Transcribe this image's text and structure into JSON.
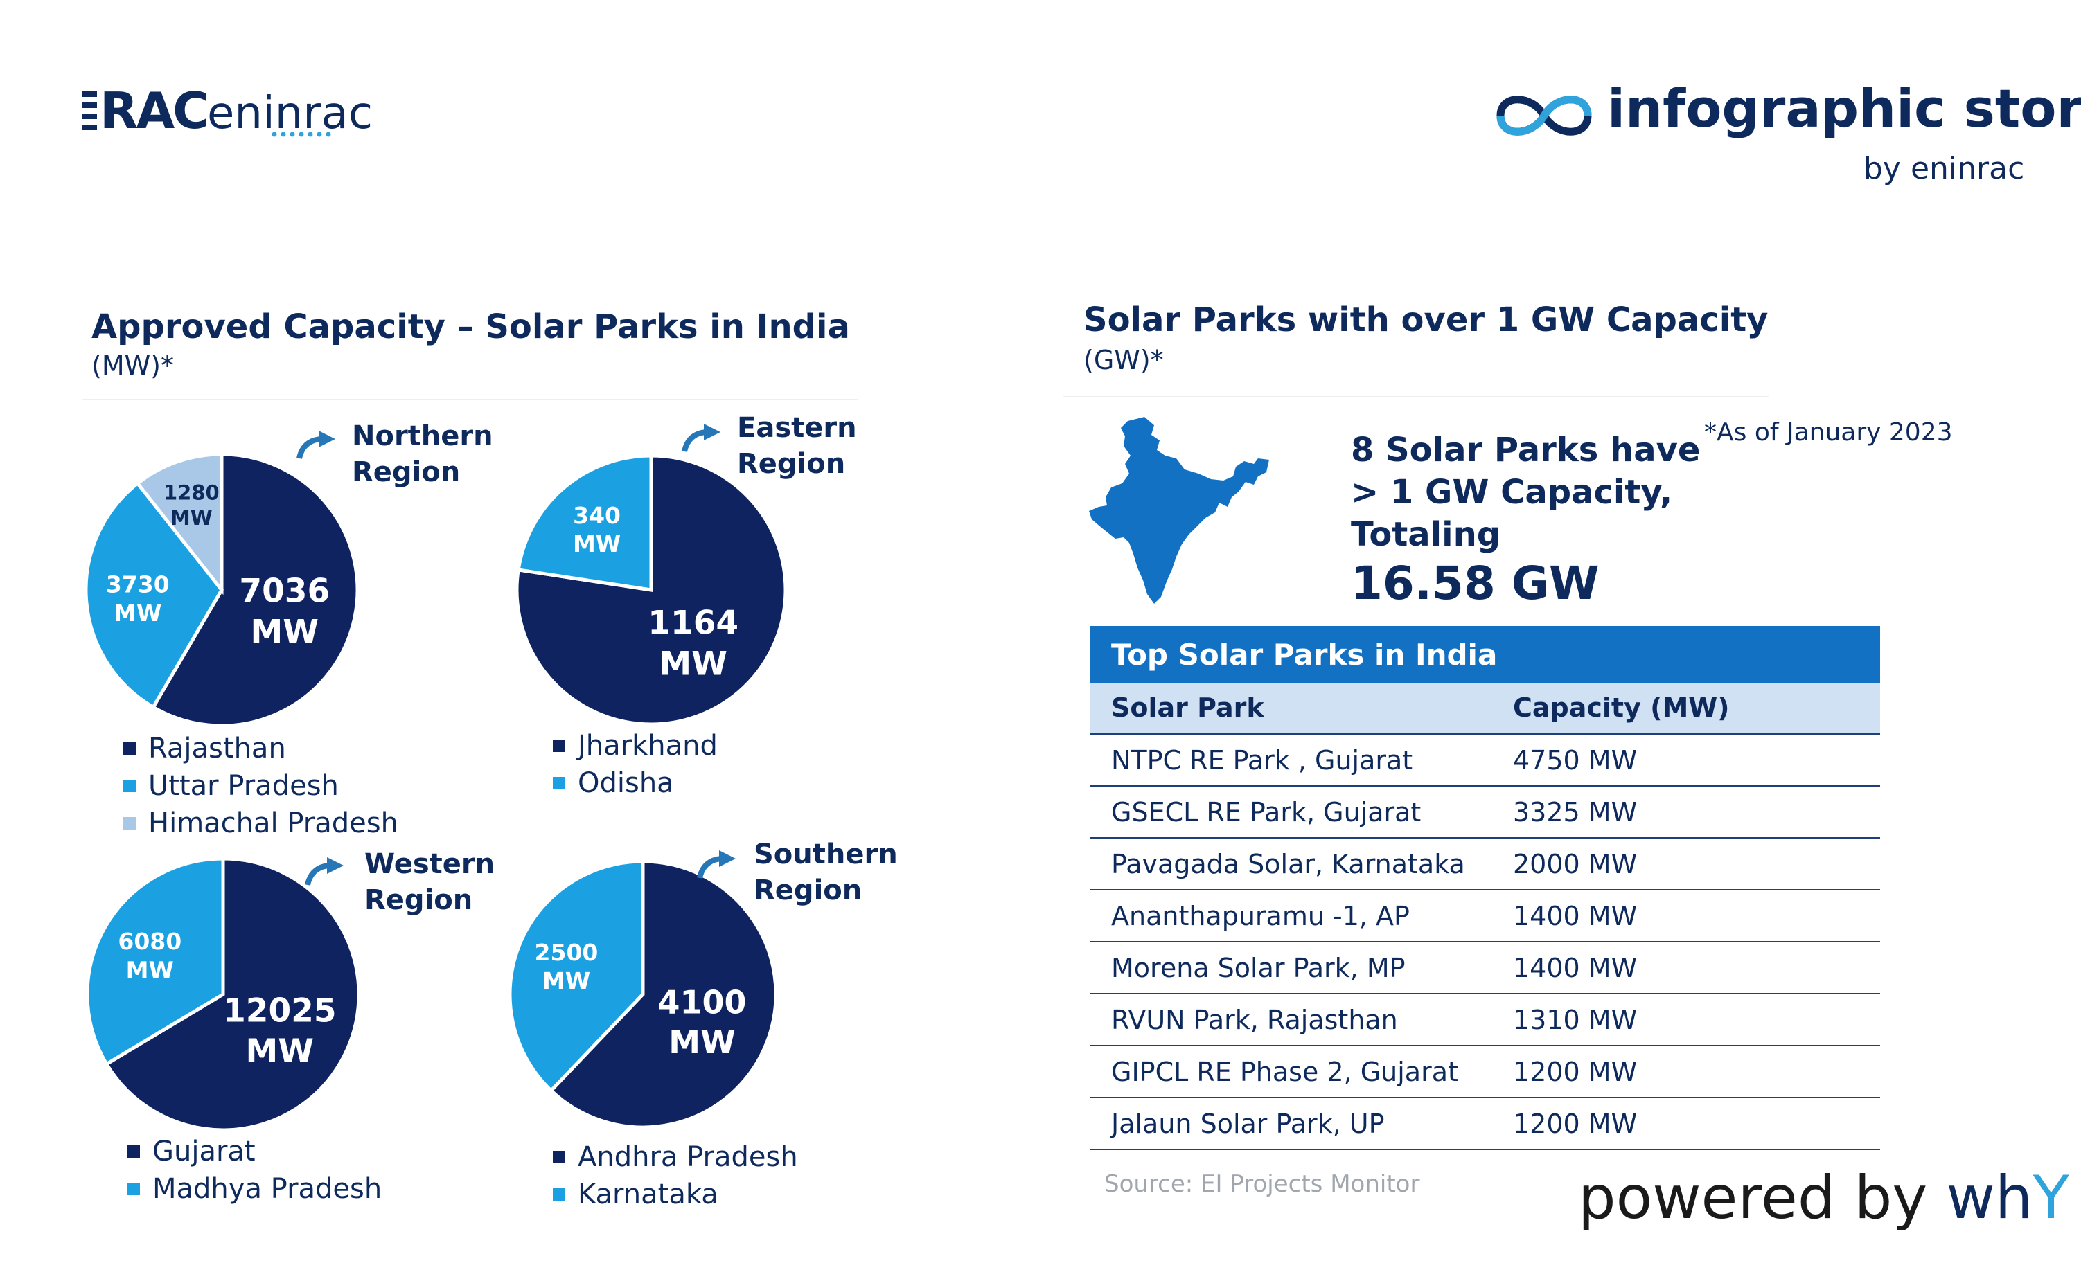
{
  "header": {
    "logo_primary": "RAC",
    "logo_secondary": "eninrac",
    "story_title": "infographic story",
    "story_byline": "by eninrac"
  },
  "left_section": {
    "title": "Approved Capacity – Solar Parks in India",
    "unit": "(MW)*"
  },
  "right_section": {
    "title": "Solar Parks with over 1 GW Capacity",
    "unit": "(GW)*",
    "as_of": "*As of January 2023",
    "stat_lines": [
      "8 Solar Parks have",
      "> 1 GW Capacity,",
      "Totaling"
    ],
    "stat_total": "16.58 GW"
  },
  "colors": {
    "navy": "#0e2a5c",
    "dark_blue": "#0f2360",
    "bright_blue": "#1ba1e2",
    "light_blue": "#a9c8e8",
    "table_header": "#1371c4",
    "table_subheader": "#cfe1f3"
  },
  "chart_data": [
    {
      "type": "pie",
      "region_lines": [
        "Northern",
        "Region"
      ],
      "unit": "MW",
      "slices": [
        {
          "label": "Rajasthan",
          "value": 7036,
          "color": "#0f2360"
        },
        {
          "label": "Uttar Pradesh",
          "value": 3730,
          "color": "#1ba1e2"
        },
        {
          "label": "Himachal Pradesh",
          "value": 1280,
          "color": "#a9c8e8"
        }
      ]
    },
    {
      "type": "pie",
      "region_lines": [
        "Eastern",
        "Region"
      ],
      "unit": "MW",
      "slices": [
        {
          "label": "Jharkhand",
          "value": 1164,
          "color": "#0f2360"
        },
        {
          "label": "Odisha",
          "value": 340,
          "color": "#1ba1e2"
        }
      ]
    },
    {
      "type": "pie",
      "region_lines": [
        "Western",
        "Region"
      ],
      "unit": "MW",
      "slices": [
        {
          "label": "Gujarat",
          "value": 12025,
          "color": "#0f2360"
        },
        {
          "label": "Madhya Pradesh",
          "value": 6080,
          "color": "#1ba1e2"
        }
      ]
    },
    {
      "type": "pie",
      "region_lines": [
        "Southern",
        "Region"
      ],
      "unit": "MW",
      "slices": [
        {
          "label": "Andhra Pradesh",
          "value": 4100,
          "color": "#0f2360"
        },
        {
          "label": "Karnataka",
          "value": 2500,
          "color": "#1ba1e2"
        }
      ]
    },
    {
      "type": "table",
      "title": "Top Solar Parks in India",
      "columns": [
        "Solar Park",
        "Capacity (MW)"
      ],
      "rows": [
        [
          "NTPC RE Park , Gujarat",
          "4750 MW"
        ],
        [
          "GSECL RE Park, Gujarat",
          "3325 MW"
        ],
        [
          "Pavagada Solar, Karnataka",
          "2000 MW"
        ],
        [
          "Ananthapuramu -1, AP",
          "1400 MW"
        ],
        [
          "Morena Solar Park, MP",
          "1400 MW"
        ],
        [
          "RVUN Park, Rajasthan",
          "1310 MW"
        ],
        [
          "GIPCL RE Phase 2, Gujarat",
          "1200 MW"
        ],
        [
          "Jalaun Solar Park, UP",
          "1200 MW"
        ]
      ]
    }
  ],
  "footer": {
    "source": "Source: EI Projects Monitor",
    "powered_prefix": "powered by ",
    "powered_wh": "wh",
    "powered_y": "Y"
  }
}
